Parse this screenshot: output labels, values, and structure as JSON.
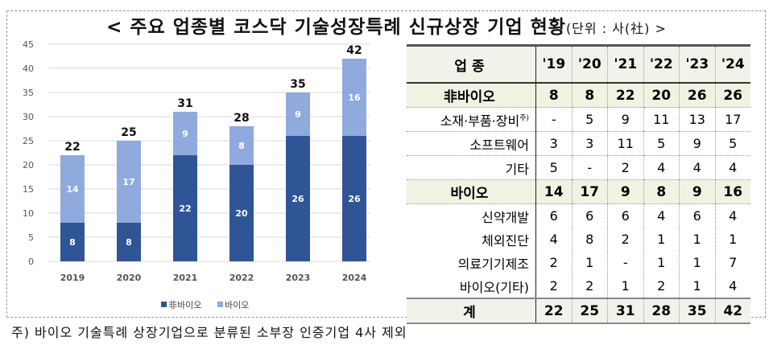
{
  "title": {
    "main": "< 주요 업종별 코스닥 기술성장특례 신규상장 기업 현황",
    "unit": "(단위 : 사(社) >"
  },
  "chart_data": {
    "type": "bar",
    "stacked": true,
    "categories": [
      "2019",
      "2020",
      "2021",
      "2022",
      "2023",
      "2024"
    ],
    "series": [
      {
        "name": "非바이오",
        "color": "#2F5597",
        "values": [
          8,
          8,
          22,
          20,
          26,
          26
        ]
      },
      {
        "name": "바이오",
        "color": "#8FAADC",
        "values": [
          14,
          17,
          9,
          8,
          9,
          16
        ]
      }
    ],
    "totals": [
      22,
      25,
      31,
      28,
      35,
      42
    ],
    "ylim": [
      0,
      45
    ],
    "yticks": [
      0,
      5,
      10,
      15,
      20,
      25,
      30,
      35,
      40,
      45
    ],
    "grid": true,
    "legend": "bottom"
  },
  "table": {
    "header": [
      "업 종",
      "'19",
      "'20",
      "'21",
      "'22",
      "'23",
      "'24"
    ],
    "rows": [
      {
        "type": "sub",
        "label": "非바이오",
        "values": [
          "8",
          "8",
          "22",
          "20",
          "26",
          "26"
        ]
      },
      {
        "type": "item",
        "label": "소재·부품·장비",
        "sup": "주)",
        "values": [
          "-",
          "5",
          "9",
          "11",
          "13",
          "17"
        ]
      },
      {
        "type": "item",
        "label": "소프트웨어",
        "values": [
          "3",
          "3",
          "11",
          "5",
          "9",
          "5"
        ]
      },
      {
        "type": "item",
        "label": "기타",
        "values": [
          "5",
          "-",
          "2",
          "4",
          "4",
          "4"
        ]
      },
      {
        "type": "sub",
        "label": "바이오",
        "values": [
          "14",
          "17",
          "9",
          "8",
          "9",
          "16"
        ]
      },
      {
        "type": "plain",
        "label": "신약개발",
        "values": [
          "6",
          "6",
          "6",
          "4",
          "6",
          "4"
        ]
      },
      {
        "type": "plain",
        "label": "체외진단",
        "values": [
          "4",
          "8",
          "2",
          "1",
          "1",
          "1"
        ]
      },
      {
        "type": "plain",
        "label": "의료기기제조",
        "values": [
          "2",
          "1",
          "-",
          "1",
          "1",
          "7"
        ]
      },
      {
        "type": "plain",
        "label": "바이오(기타)",
        "values": [
          "2",
          "2",
          "1",
          "2",
          "1",
          "4"
        ]
      },
      {
        "type": "total",
        "label": "계",
        "values": [
          "22",
          "25",
          "31",
          "28",
          "35",
          "42"
        ]
      }
    ]
  },
  "footnote": "주) 바이오 기술특례 상장기업으로 분류된 소부장 인증기업 4사 제외"
}
